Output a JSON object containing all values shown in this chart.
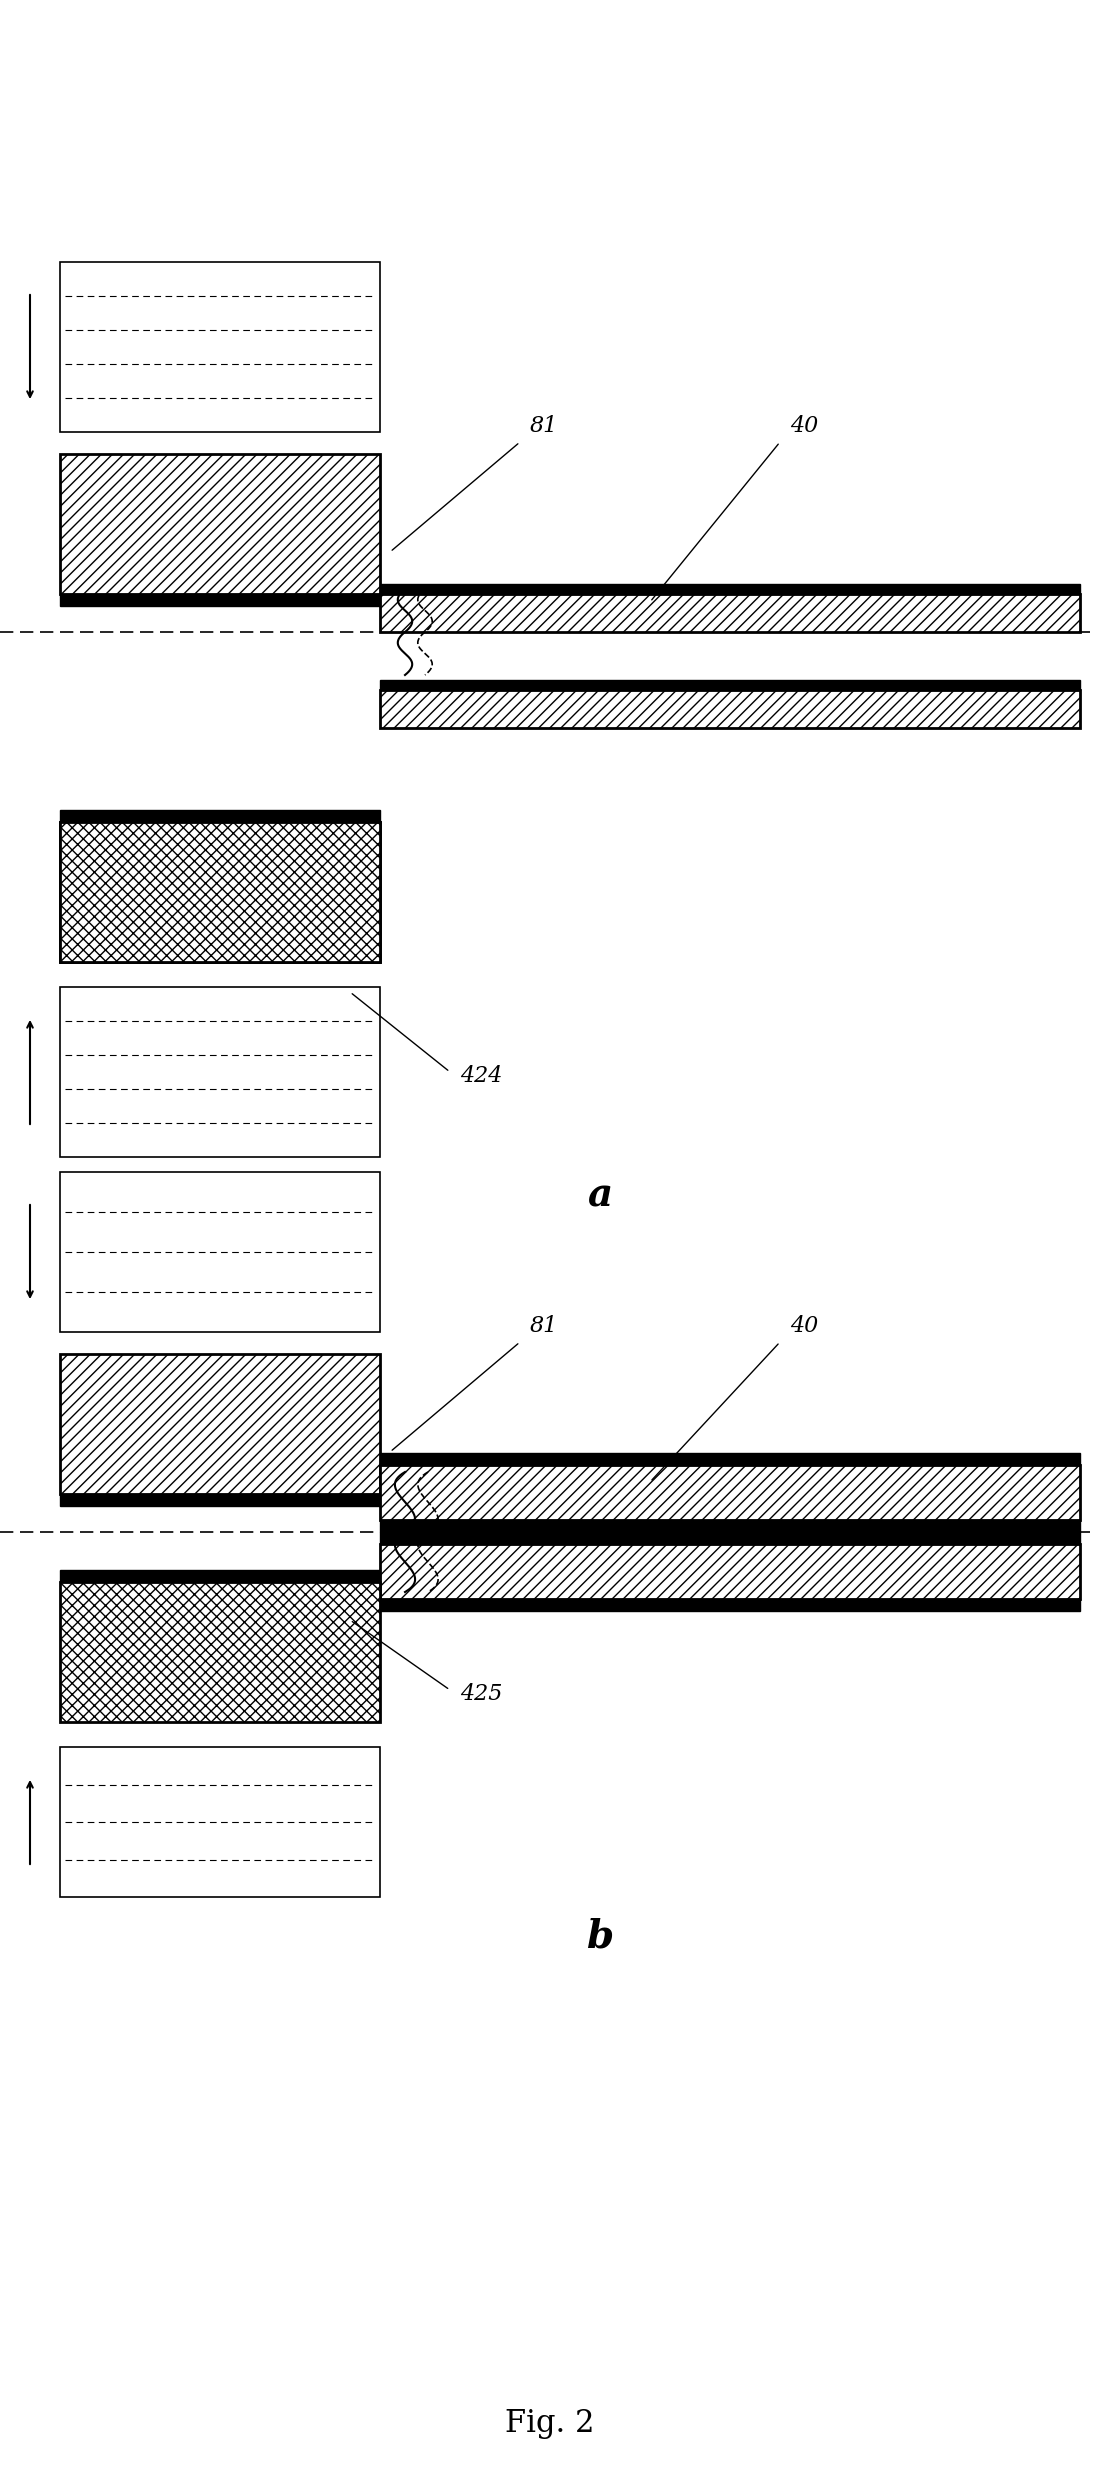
{
  "fig_width": 11.04,
  "fig_height": 24.82,
  "background_color": "#ffffff",
  "line_color": "#000000",
  "hatch_color": "#000000",
  "label_81": "81",
  "label_40": "40",
  "label_424": "424",
  "label_425": "425",
  "label_a": "a",
  "label_b": "b",
  "label_fig": "Fig. 2"
}
